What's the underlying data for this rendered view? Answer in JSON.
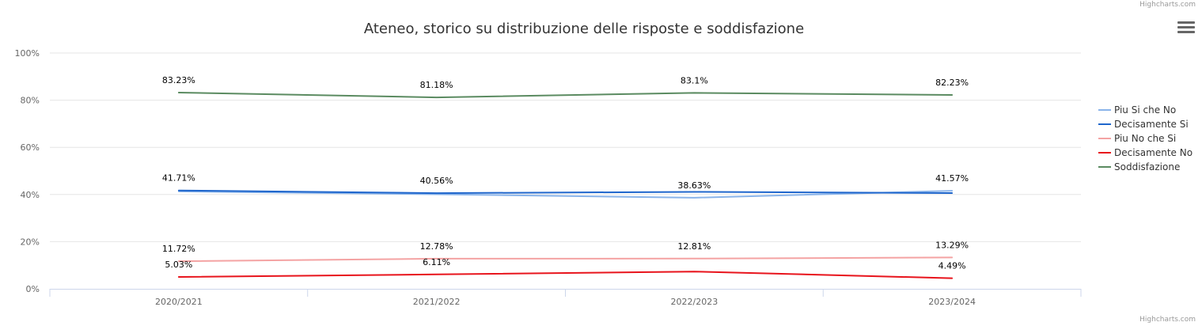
{
  "credits": {
    "top": "Highcharts.com",
    "bottom": "Highcharts.com"
  },
  "menu": {
    "icon": "hamburger-menu-icon"
  },
  "chart_data": {
    "type": "line",
    "title": "Ateneo, storico su distribuzione delle risposte e soddisfazione",
    "categories": [
      "2020/2021",
      "2021/2022",
      "2022/2023",
      "2023/2024"
    ],
    "ylim": [
      0,
      100
    ],
    "yticks": [
      "0%",
      "20%",
      "40%",
      "60%",
      "80%",
      "100%"
    ],
    "ytick_values": [
      0,
      20,
      40,
      60,
      80,
      100
    ],
    "grid": true,
    "legend": "right",
    "series": [
      {
        "name": "Piu Si che No",
        "color": "#8ab4ea",
        "values": [
          41.3,
          40.1,
          38.63,
          41.57
        ],
        "labels": [
          "",
          "",
          "38.63%",
          "41.57%"
        ]
      },
      {
        "name": "Decisamente Si",
        "color": "#1f66cc",
        "values": [
          41.71,
          40.56,
          41.1,
          40.6
        ],
        "labels": [
          "41.71%",
          "40.56%",
          "",
          ""
        ]
      },
      {
        "name": "Piu No che Si",
        "color": "#f4a3a3",
        "values": [
          11.72,
          12.78,
          12.81,
          13.29
        ],
        "labels": [
          "11.72%",
          "12.78%",
          "12.81%",
          "13.29%"
        ]
      },
      {
        "name": "Decisamente No",
        "color": "#e8141c",
        "values": [
          5.03,
          6.11,
          7.3,
          4.49
        ],
        "labels": [
          "5.03%",
          "6.11%",
          "",
          "4.49%"
        ]
      },
      {
        "name": "Soddisfazione",
        "color": "#5b8b61",
        "values": [
          83.23,
          81.18,
          83.1,
          82.23
        ],
        "labels": [
          "83.23%",
          "81.18%",
          "83.1%",
          "82.23%"
        ]
      }
    ]
  }
}
